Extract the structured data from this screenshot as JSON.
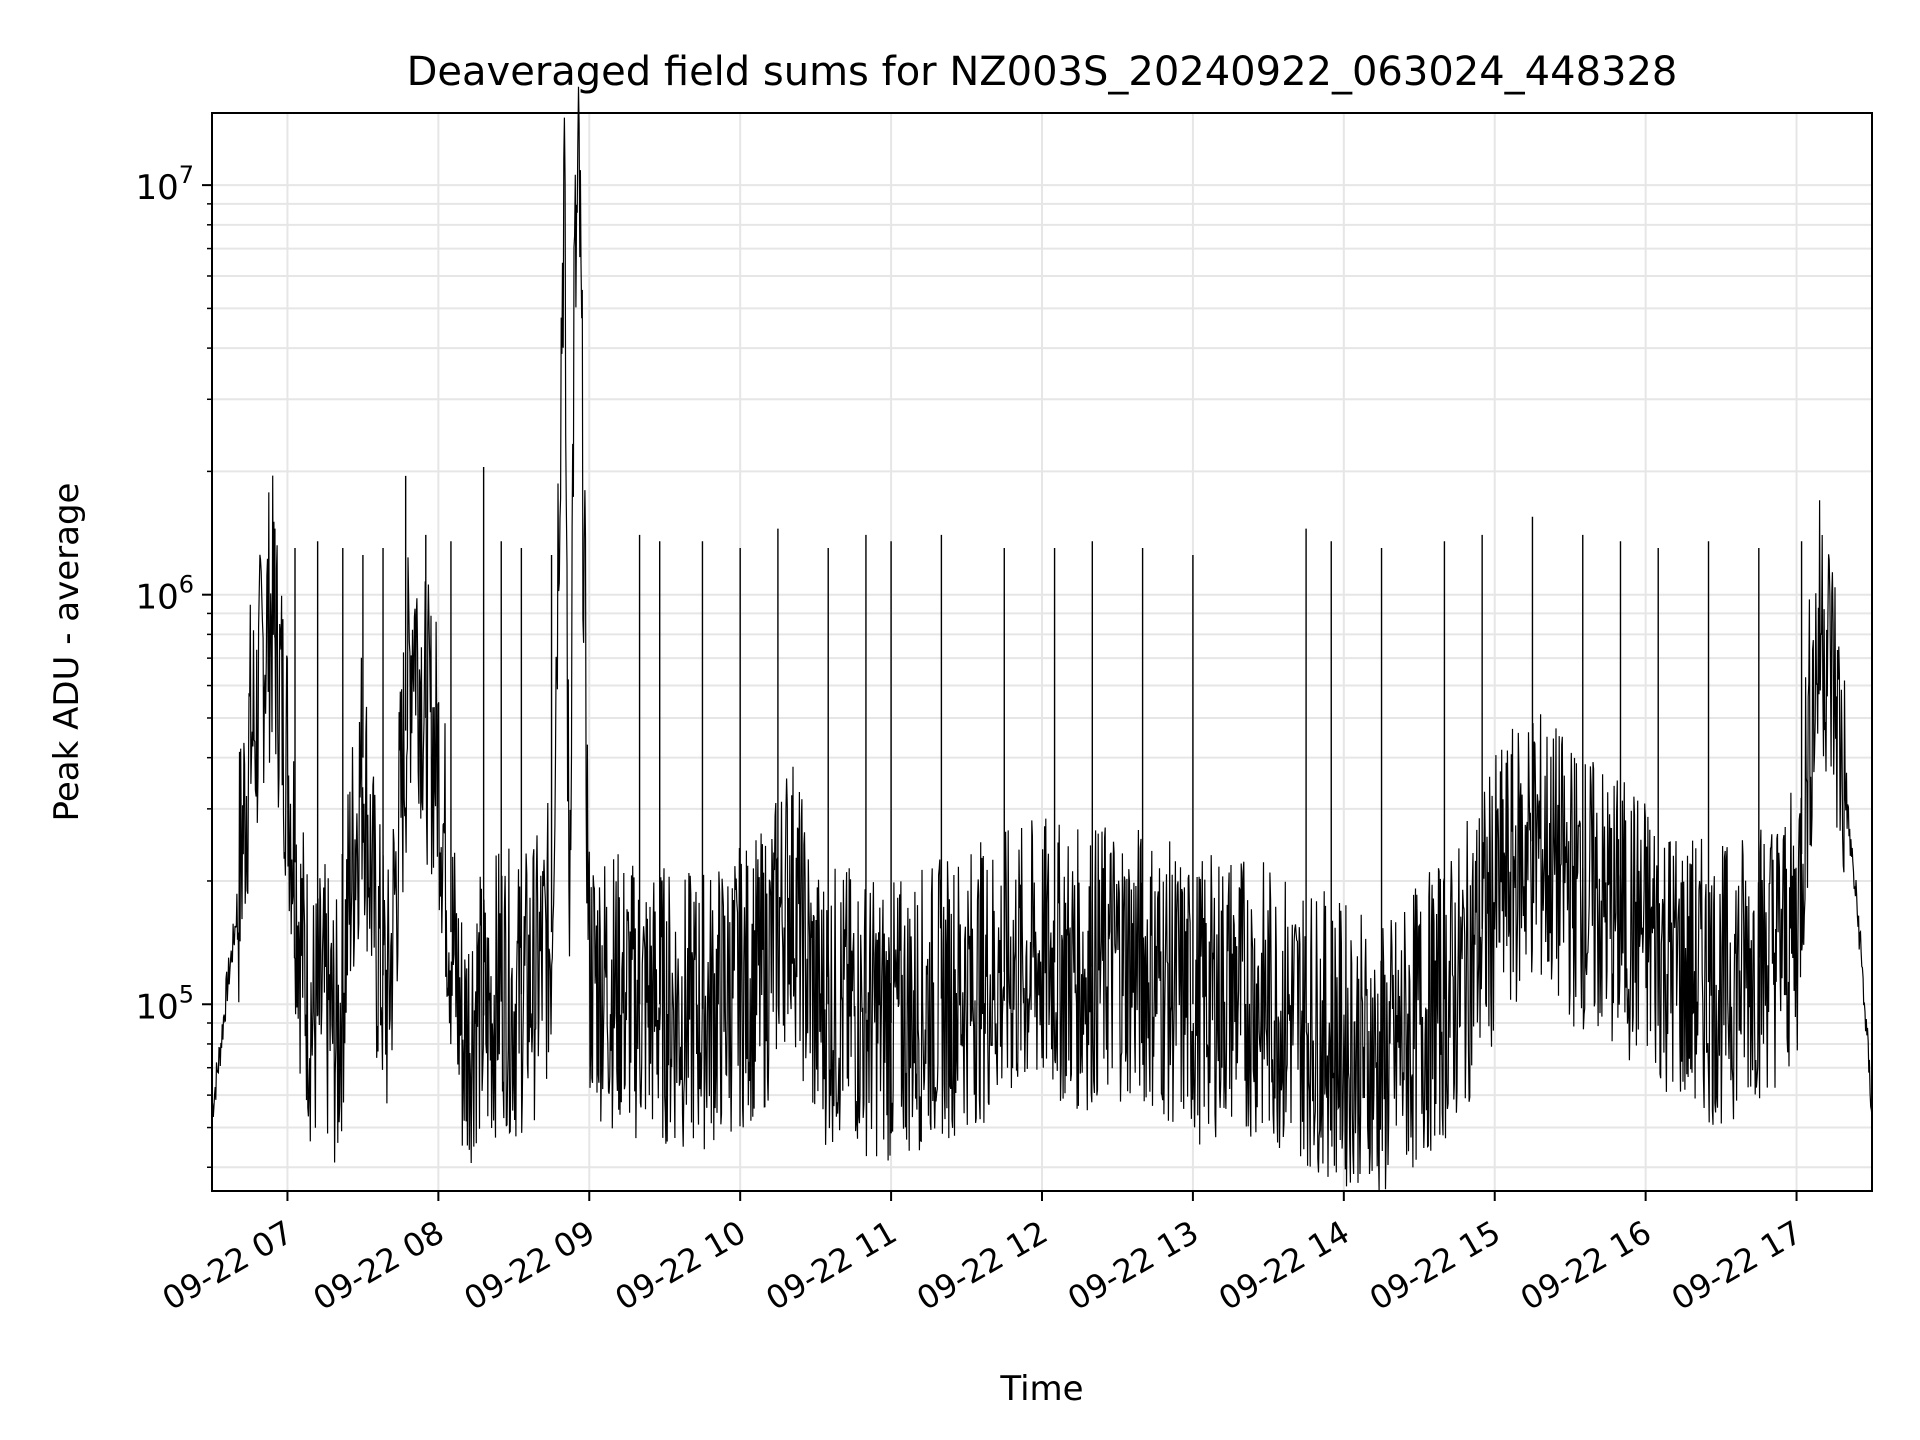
{
  "chart_data": {
    "type": "line",
    "title": "Deaveraged field sums for NZ003S_20240922_063024_448328",
    "xlabel": "Time",
    "ylabel": "Peak ADU - average",
    "xlim": [
      "2024-09-22 06:30",
      "2024-09-22 17:30"
    ],
    "ylim": [
      35000,
      15000000
    ],
    "y_scale": "log",
    "grid": true,
    "legend": "none",
    "line_color": "#000000",
    "grid_color": "#e6e6e6",
    "x_ticks": [
      {
        "value": "2024-09-22 07:00",
        "label": "09-22 07"
      },
      {
        "value": "2024-09-22 08:00",
        "label": "09-22 08"
      },
      {
        "value": "2024-09-22 09:00",
        "label": "09-22 09"
      },
      {
        "value": "2024-09-22 10:00",
        "label": "09-22 10"
      },
      {
        "value": "2024-09-22 11:00",
        "label": "09-22 11"
      },
      {
        "value": "2024-09-22 12:00",
        "label": "09-22 12"
      },
      {
        "value": "2024-09-22 13:00",
        "label": "09-22 13"
      },
      {
        "value": "2024-09-22 14:00",
        "label": "09-22 14"
      },
      {
        "value": "2024-09-22 15:00",
        "label": "09-22 15"
      },
      {
        "value": "2024-09-22 16:00",
        "label": "09-22 16"
      },
      {
        "value": "2024-09-22 17:00",
        "label": "09-22 17"
      }
    ],
    "y_ticks": [
      {
        "value": 100000,
        "base": "10",
        "exp": "5"
      },
      {
        "value": 1000000,
        "base": "10",
        "exp": "6"
      },
      {
        "value": 10000000,
        "base": "10",
        "exp": "7"
      }
    ],
    "series": [
      {
        "x": [
          "2024-09-22 06:30",
          "2024-09-22 06:33",
          "2024-09-22 06:36",
          "2024-09-22 06:39",
          "2024-09-22 06:42",
          "2024-09-22 06:45",
          "2024-09-22 06:48",
          "2024-09-22 06:51",
          "2024-09-22 06:54",
          "2024-09-22 06:57",
          "2024-09-22 07:00",
          "2024-09-22 07:05",
          "2024-09-22 07:10",
          "2024-09-22 07:15",
          "2024-09-22 07:20",
          "2024-09-22 07:25",
          "2024-09-22 07:30",
          "2024-09-22 07:35",
          "2024-09-22 07:40",
          "2024-09-22 07:45",
          "2024-09-22 07:50",
          "2024-09-22 07:55",
          "2024-09-22 08:00",
          "2024-09-22 08:05",
          "2024-09-22 08:10",
          "2024-09-22 08:15",
          "2024-09-22 08:20",
          "2024-09-22 08:25",
          "2024-09-22 08:30",
          "2024-09-22 08:35",
          "2024-09-22 08:40",
          "2024-09-22 08:45",
          "2024-09-22 08:50",
          "2024-09-22 08:52",
          "2024-09-22 08:54",
          "2024-09-22 08:56",
          "2024-09-22 09:00",
          "2024-09-22 09:10",
          "2024-09-22 09:20",
          "2024-09-22 09:30",
          "2024-09-22 09:40",
          "2024-09-22 09:50",
          "2024-09-22 10:00",
          "2024-09-22 10:10",
          "2024-09-22 10:20",
          "2024-09-22 10:30",
          "2024-09-22 10:40",
          "2024-09-22 10:50",
          "2024-09-22 11:00",
          "2024-09-22 11:15",
          "2024-09-22 11:30",
          "2024-09-22 11:45",
          "2024-09-22 12:00",
          "2024-09-22 12:15",
          "2024-09-22 12:30",
          "2024-09-22 12:45",
          "2024-09-22 13:00",
          "2024-09-22 13:15",
          "2024-09-22 13:30",
          "2024-09-22 13:45",
          "2024-09-22 14:00",
          "2024-09-22 14:15",
          "2024-09-22 14:30",
          "2024-09-22 14:45",
          "2024-09-22 15:00",
          "2024-09-22 15:15",
          "2024-09-22 15:30",
          "2024-09-22 15:45",
          "2024-09-22 16:00",
          "2024-09-22 16:15",
          "2024-09-22 16:30",
          "2024-09-22 16:45",
          "2024-09-22 17:00",
          "2024-09-22 17:05",
          "2024-09-22 17:10",
          "2024-09-22 17:15",
          "2024-09-22 17:20",
          "2024-09-22 17:25",
          "2024-09-22 17:30"
        ],
        "values": [
          55000,
          75000,
          110000,
          150000,
          250000,
          450000,
          500000,
          800000,
          900000,
          600000,
          400000,
          150000,
          90000,
          100000,
          80000,
          200000,
          400000,
          150000,
          100000,
          300000,
          900000,
          500000,
          400000,
          150000,
          80000,
          100000,
          90000,
          120000,
          100000,
          110000,
          120000,
          150000,
          11000000,
          150000,
          5000000,
          10000000,
          120000,
          110000,
          100000,
          100000,
          95000,
          100000,
          110000,
          120000,
          200000,
          100000,
          100000,
          95000,
          90000,
          100000,
          110000,
          120000,
          130000,
          120000,
          130000,
          120000,
          100000,
          110000,
          100000,
          90000,
          80000,
          70000,
          90000,
          110000,
          180000,
          250000,
          200000,
          170000,
          150000,
          120000,
          110000,
          130000,
          150000,
          450000,
          900000,
          600000,
          300000,
          150000,
          55000
        ]
      }
    ],
    "spikes": [
      {
        "x": "2024-09-22 06:55",
        "y": 1450000
      },
      {
        "x": "2024-09-22 07:03",
        "y": 1300000
      },
      {
        "x": "2024-09-22 07:12",
        "y": 1350000
      },
      {
        "x": "2024-09-22 07:22",
        "y": 1300000
      },
      {
        "x": "2024-09-22 07:30",
        "y": 1250000
      },
      {
        "x": "2024-09-22 07:38",
        "y": 1300000
      },
      {
        "x": "2024-09-22 07:47",
        "y": 1950000
      },
      {
        "x": "2024-09-22 07:55",
        "y": 1400000
      },
      {
        "x": "2024-09-22 08:05",
        "y": 1350000
      },
      {
        "x": "2024-09-22 08:18",
        "y": 2050000
      },
      {
        "x": "2024-09-22 08:25",
        "y": 1350000
      },
      {
        "x": "2024-09-22 08:33",
        "y": 1300000
      },
      {
        "x": "2024-09-22 08:45",
        "y": 1250000
      },
      {
        "x": "2024-09-22 09:20",
        "y": 1400000
      },
      {
        "x": "2024-09-22 09:28",
        "y": 1350000
      },
      {
        "x": "2024-09-22 09:45",
        "y": 1350000
      },
      {
        "x": "2024-09-22 10:00",
        "y": 1300000
      },
      {
        "x": "2024-09-22 10:15",
        "y": 1450000
      },
      {
        "x": "2024-09-22 10:35",
        "y": 1300000
      },
      {
        "x": "2024-09-22 10:50",
        "y": 1400000
      },
      {
        "x": "2024-09-22 11:00",
        "y": 1350000
      },
      {
        "x": "2024-09-22 11:20",
        "y": 1400000
      },
      {
        "x": "2024-09-22 11:45",
        "y": 1300000
      },
      {
        "x": "2024-09-22 12:05",
        "y": 1300000
      },
      {
        "x": "2024-09-22 12:20",
        "y": 1350000
      },
      {
        "x": "2024-09-22 12:40",
        "y": 1300000
      },
      {
        "x": "2024-09-22 13:00",
        "y": 1250000
      },
      {
        "x": "2024-09-22 13:45",
        "y": 1450000
      },
      {
        "x": "2024-09-22 13:55",
        "y": 1350000
      },
      {
        "x": "2024-09-22 14:15",
        "y": 1300000
      },
      {
        "x": "2024-09-22 14:40",
        "y": 1350000
      },
      {
        "x": "2024-09-22 14:55",
        "y": 1400000
      },
      {
        "x": "2024-09-22 15:15",
        "y": 1550000
      },
      {
        "x": "2024-09-22 15:35",
        "y": 1400000
      },
      {
        "x": "2024-09-22 15:50",
        "y": 1350000
      },
      {
        "x": "2024-09-22 16:05",
        "y": 1300000
      },
      {
        "x": "2024-09-22 16:25",
        "y": 1350000
      },
      {
        "x": "2024-09-22 16:45",
        "y": 1300000
      },
      {
        "x": "2024-09-22 17:02",
        "y": 1350000
      }
    ]
  }
}
